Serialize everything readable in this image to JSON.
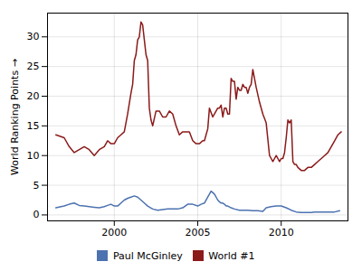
{
  "chart_data": {
    "type": "line",
    "ylabel": "World Ranking Points",
    "xlim": [
      1996.0,
      2014.0
    ],
    "ylim": [
      -1,
      34
    ],
    "xticks": [
      2000,
      2005,
      2010
    ],
    "yticks": [
      0,
      5,
      10,
      15,
      20,
      25,
      30
    ],
    "grid": true,
    "legend": "bottom",
    "series": [
      {
        "name": "Paul McGinley",
        "color": "#4c72b0",
        "x": [
          1996.5,
          1997.0,
          1997.3,
          1997.6,
          1997.9,
          1998.2,
          1998.5,
          1998.8,
          1999.1,
          1999.4,
          1999.6,
          1999.8,
          2000.0,
          2000.2,
          2000.4,
          2000.6,
          2000.8,
          2001.0,
          2001.2,
          2001.4,
          2001.6,
          2001.8,
          2002.0,
          2002.3,
          2002.6,
          2002.9,
          2003.2,
          2003.5,
          2003.8,
          2004.1,
          2004.4,
          2004.7,
          2005.0,
          2005.2,
          2005.4,
          2005.6,
          2005.8,
          2006.0,
          2006.2,
          2006.3,
          2006.4,
          2006.5,
          2006.6,
          2006.7,
          2006.8,
          2007.0,
          2007.2,
          2007.5,
          2007.8,
          2008.0,
          2008.3,
          2008.6,
          2008.9,
          2009.1,
          2009.4,
          2009.7,
          2010.0,
          2010.3,
          2010.6,
          2010.9,
          2011.2,
          2011.5,
          2011.8,
          2012.0,
          2012.3,
          2012.6,
          2012.9,
          2013.2,
          2013.5
        ],
        "values": [
          1.2,
          1.5,
          1.8,
          2.0,
          1.6,
          1.5,
          1.4,
          1.3,
          1.2,
          1.4,
          1.6,
          1.8,
          1.5,
          1.5,
          2.0,
          2.5,
          2.8,
          3.0,
          3.2,
          3.0,
          2.5,
          2.0,
          1.5,
          1.0,
          0.8,
          0.9,
          1.0,
          1.0,
          1.0,
          1.2,
          1.8,
          1.8,
          1.5,
          1.8,
          2.0,
          3.0,
          4.0,
          3.5,
          2.5,
          2.2,
          2.0,
          2.0,
          1.8,
          1.5,
          1.5,
          1.2,
          1.0,
          0.8,
          0.8,
          0.8,
          0.7,
          0.7,
          0.6,
          1.2,
          1.4,
          1.5,
          1.5,
          1.2,
          0.8,
          0.5,
          0.4,
          0.4,
          0.4,
          0.5,
          0.5,
          0.5,
          0.5,
          0.5,
          0.7
        ]
      },
      {
        "name": "World #1",
        "color": "#8b1a1a",
        "x": [
          1996.5,
          1997.0,
          1997.3,
          1997.6,
          1997.9,
          1998.2,
          1998.5,
          1998.8,
          1999.1,
          1999.4,
          1999.6,
          1999.8,
          2000.0,
          2000.2,
          2000.4,
          2000.6,
          2000.8,
          2001.0,
          2001.1,
          2001.2,
          2001.3,
          2001.4,
          2001.5,
          2001.6,
          2001.7,
          2001.8,
          2001.9,
          2002.0,
          2002.1,
          2002.2,
          2002.3,
          2002.5,
          2002.7,
          2002.9,
          2003.1,
          2003.3,
          2003.5,
          2003.7,
          2003.9,
          2004.1,
          2004.3,
          2004.5,
          2004.7,
          2004.9,
          2005.1,
          2005.3,
          2005.4,
          2005.5,
          2005.6,
          2005.7,
          2005.9,
          2006.0,
          2006.1,
          2006.2,
          2006.3,
          2006.4,
          2006.5,
          2006.6,
          2006.7,
          2006.8,
          2006.9,
          2007.0,
          2007.1,
          2007.2,
          2007.3,
          2007.4,
          2007.5,
          2007.6,
          2007.7,
          2007.8,
          2007.9,
          2008.0,
          2008.1,
          2008.2,
          2008.3,
          2008.5,
          2008.7,
          2008.9,
          2009.1,
          2009.3,
          2009.4,
          2009.5,
          2009.6,
          2009.7,
          2009.8,
          2009.9,
          2010.0,
          2010.1,
          2010.2,
          2010.3,
          2010.4,
          2010.5,
          2010.6,
          2010.7,
          2010.8,
          2010.9,
          2011.0,
          2011.2,
          2011.4,
          2011.6,
          2011.8,
          2012.0,
          2012.2,
          2012.4,
          2012.6,
          2012.8,
          2013.0,
          2013.2,
          2013.4,
          2013.6
        ],
        "values": [
          13.5,
          13.0,
          11.5,
          10.5,
          11.0,
          11.5,
          11.0,
          10.0,
          11.0,
          11.5,
          12.5,
          12.0,
          12.0,
          13.0,
          13.5,
          14.0,
          17.0,
          20.5,
          22.0,
          26.0,
          27.0,
          29.5,
          30.0,
          32.5,
          32.0,
          29.5,
          27.0,
          26.0,
          18.0,
          16.0,
          15.0,
          17.5,
          17.5,
          16.5,
          16.5,
          17.5,
          17.0,
          15.0,
          13.5,
          14.0,
          14.0,
          14.0,
          12.5,
          12.0,
          12.0,
          12.5,
          12.5,
          13.5,
          14.5,
          18.0,
          16.5,
          17.0,
          17.5,
          18.0,
          18.0,
          18.5,
          16.5,
          18.0,
          18.0,
          17.0,
          17.0,
          23.0,
          22.5,
          22.5,
          19.5,
          21.5,
          21.0,
          21.0,
          22.0,
          21.5,
          21.5,
          20.5,
          21.5,
          22.0,
          24.5,
          21.5,
          19.0,
          17.0,
          15.5,
          10.0,
          9.5,
          9.0,
          9.5,
          10.0,
          9.5,
          9.0,
          9.5,
          9.5,
          10.5,
          13.0,
          16.0,
          15.5,
          16.0,
          9.0,
          8.5,
          8.5,
          8.0,
          7.5,
          7.5,
          8.0,
          8.0,
          8.5,
          9.0,
          9.5,
          10.0,
          10.5,
          11.5,
          12.5,
          13.5,
          14.0
        ]
      }
    ]
  }
}
